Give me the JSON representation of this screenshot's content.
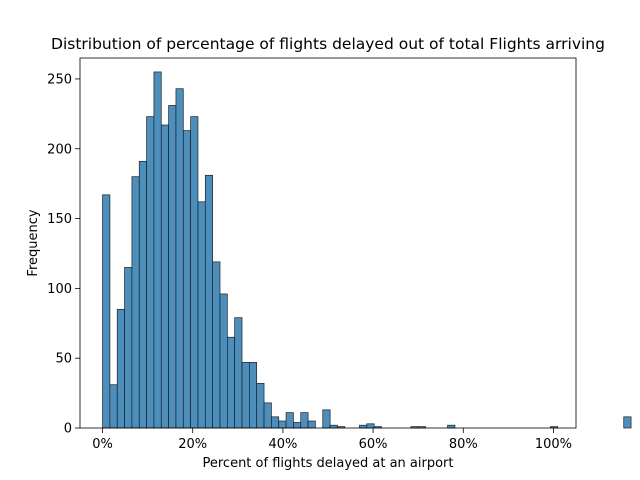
{
  "chart_data": {
    "type": "bar",
    "title": "Distribution of percentage of flights delayed out of total Flights arriving",
    "xlabel": "Percent of flights delayed at an airport",
    "ylabel": "Frequency",
    "xlim": [
      -0.05,
      1.05
    ],
    "ylim": [
      0,
      265
    ],
    "xticks": [
      0,
      0.2,
      0.4,
      0.6,
      0.8,
      1.0
    ],
    "xtick_labels": [
      "0%",
      "20%",
      "40%",
      "60%",
      "80%",
      "100%"
    ],
    "yticks": [
      0,
      50,
      100,
      150,
      200,
      250
    ],
    "ytick_labels": [
      "0",
      "50",
      "100",
      "150",
      "200",
      "250"
    ],
    "bin_width": 0.01628,
    "bin_start": 0,
    "values": [
      167,
      31,
      85,
      115,
      180,
      191,
      223,
      255,
      217,
      231,
      243,
      213,
      223,
      162,
      181,
      119,
      96,
      65,
      79,
      47,
      47,
      32,
      18,
      8,
      5,
      11,
      4,
      11,
      5,
      0,
      13,
      2,
      1,
      0,
      0,
      2,
      3,
      1,
      0,
      0,
      0,
      0,
      1,
      1,
      0,
      0,
      0,
      2,
      0,
      0,
      0,
      0,
      0,
      0,
      0,
      0,
      0,
      0,
      0,
      0,
      0,
      1,
      0,
      0,
      0,
      0,
      0,
      0,
      0,
      0,
      0,
      8
    ],
    "bar_color": "#4c8fbd",
    "edge_color": "#1f1f1f",
    "grid": false
  }
}
